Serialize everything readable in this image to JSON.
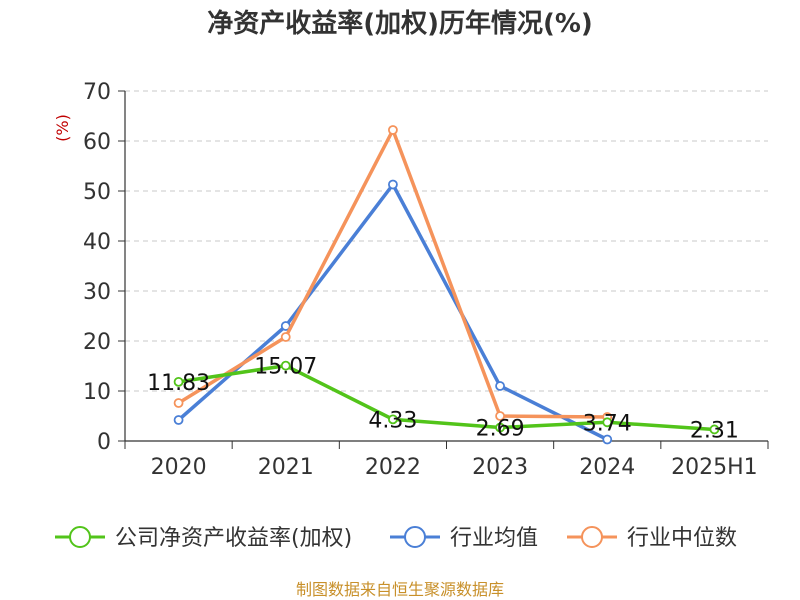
{
  "chart_data": {
    "type": "line",
    "title": "净资产收益率(加权)历年情况(%)",
    "ylabel": "(%)",
    "xlabel": "",
    "categories": [
      "2020",
      "2021",
      "2022",
      "2023",
      "2024",
      "2025H1"
    ],
    "ylim": [
      0,
      70
    ],
    "yticks": [
      0,
      10,
      20,
      30,
      40,
      50,
      60,
      70
    ],
    "grid": "horizontal-dashed",
    "legend_position": "bottom",
    "series": [
      {
        "name": "公司净资产收益率(加权)",
        "color": "#52c41a",
        "values": [
          11.83,
          15.07,
          4.33,
          2.69,
          3.74,
          2.31
        ],
        "labels": true
      },
      {
        "name": "行业均值",
        "color": "#4a7fd6",
        "values": [
          4.2,
          23.0,
          51.3,
          11.0,
          0.3,
          null
        ],
        "labels": false
      },
      {
        "name": "行业中位数",
        "color": "#f5935b",
        "values": [
          7.6,
          20.8,
          62.2,
          5.0,
          4.8,
          null
        ],
        "labels": false
      }
    ]
  },
  "source_text": "制图数据来自恒生聚源数据库"
}
